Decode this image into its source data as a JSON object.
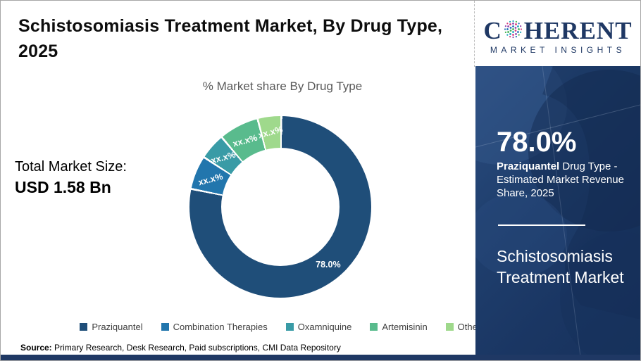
{
  "header": {
    "title": "Schistosomiasis Treatment Market, By Drug Type, 2025"
  },
  "total_market": {
    "label": "Total Market Size:",
    "value": "USD 1.58 Bn"
  },
  "source": {
    "label": "Source:",
    "text": " Primary Research, Desk Research, Paid subscriptions, CMI Data Repository"
  },
  "logo": {
    "word_start": "C",
    "word_end": "HERENT",
    "tagline": "MARKET INSIGHTS",
    "globe_icon_colors": [
      "#3faf4e",
      "#1f6db5",
      "#8e44ad",
      "#d63a7e",
      "#16a2b8"
    ]
  },
  "panel": {
    "highlight_value": "78.0%",
    "highlight_bold": "Praziquantel",
    "highlight_rest": " Drug Type - Estimated Market Revenue Share, 2025",
    "report_title": "Schistosomiasis Treatment Market"
  },
  "chart_data": {
    "type": "pie",
    "donut": true,
    "title": "% Market share By Drug Type",
    "legend_position": "bottom",
    "series": [
      {
        "name": "Praziquantel",
        "value": 78.0,
        "label": "78.0%",
        "color": "#1f4e79"
      },
      {
        "name": "Combination Therapies",
        "value": 6.0,
        "label": "xx.x%",
        "color": "#2276ad"
      },
      {
        "name": "Oxamniquine",
        "value": 4.7,
        "label": "xx.x%",
        "color": "#399ba6"
      },
      {
        "name": "Artemisinin",
        "value": 7.1,
        "label": "xx.x%",
        "color": "#59bb8d"
      },
      {
        "name": "Others",
        "value": 4.2,
        "label": "xx.x%",
        "color": "#9fd98c"
      }
    ]
  },
  "colors": {
    "panel_navy": "#1e3a66",
    "accent_navy": "#1f3864",
    "subtitle_gray": "#595959",
    "legend_text": "#404040"
  }
}
